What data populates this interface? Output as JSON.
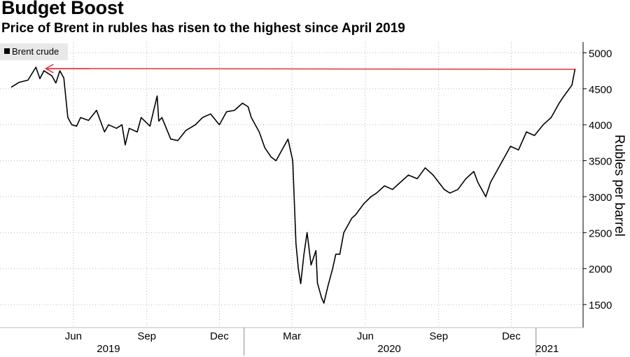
{
  "chart_data": {
    "type": "line",
    "title": "Budget Boost",
    "subtitle": "Price of Brent in rubles has risen to the highest since April 2019",
    "ylabel": "Rubles per barrel",
    "xlabel": "",
    "ylim": [
      1180,
      5150
    ],
    "y_ticks": [
      1500,
      2000,
      2500,
      3000,
      3500,
      4000,
      4500,
      5000
    ],
    "x_ticks": [
      {
        "label": "Jun",
        "date": "2019-06-01"
      },
      {
        "label": "Sep",
        "date": "2019-09-01"
      },
      {
        "label": "Dec",
        "date": "2019-12-01"
      },
      {
        "label": "Mar",
        "date": "2020-03-01"
      },
      {
        "label": "Jun",
        "date": "2020-06-01"
      },
      {
        "label": "Sep",
        "date": "2020-09-01"
      },
      {
        "label": "Dec",
        "date": "2020-12-01"
      }
    ],
    "year_labels": [
      {
        "label": "2019",
        "date": "2019-07-15"
      },
      {
        "label": "2020",
        "date": "2020-07-01"
      },
      {
        "label": "2021",
        "date": "2021-01-15"
      }
    ],
    "grid": true,
    "legend": {
      "position": "top-left",
      "label": "Brent crude"
    },
    "series": [
      {
        "name": "Brent crude",
        "color": "#000000",
        "x": [
          "2019-03-15",
          "2019-03-25",
          "2019-04-05",
          "2019-04-15",
          "2019-04-20",
          "2019-04-25",
          "2019-05-05",
          "2019-05-10",
          "2019-05-15",
          "2019-05-20",
          "2019-05-25",
          "2019-05-30",
          "2019-06-05",
          "2019-06-10",
          "2019-06-20",
          "2019-06-30",
          "2019-07-10",
          "2019-07-15",
          "2019-07-25",
          "2019-08-01",
          "2019-08-05",
          "2019-08-10",
          "2019-08-20",
          "2019-08-25",
          "2019-09-05",
          "2019-09-14",
          "2019-09-16",
          "2019-09-20",
          "2019-10-01",
          "2019-10-10",
          "2019-10-20",
          "2019-11-01",
          "2019-11-10",
          "2019-11-20",
          "2019-12-01",
          "2019-12-10",
          "2019-12-20",
          "2019-12-30",
          "2020-01-06",
          "2020-01-10",
          "2020-01-20",
          "2020-01-27",
          "2020-02-04",
          "2020-02-10",
          "2020-02-20",
          "2020-02-25",
          "2020-03-02",
          "2020-03-06",
          "2020-03-09",
          "2020-03-12",
          "2020-03-16",
          "2020-03-20",
          "2020-03-25",
          "2020-03-31",
          "2020-04-02",
          "2020-04-07",
          "2020-04-10",
          "2020-04-15",
          "2020-04-21",
          "2020-04-25",
          "2020-04-30",
          "2020-05-05",
          "2020-05-10",
          "2020-05-15",
          "2020-05-20",
          "2020-05-30",
          "2020-06-08",
          "2020-06-15",
          "2020-06-25",
          "2020-07-05",
          "2020-07-15",
          "2020-07-25",
          "2020-08-05",
          "2020-08-15",
          "2020-08-25",
          "2020-09-01",
          "2020-09-08",
          "2020-09-15",
          "2020-09-25",
          "2020-10-05",
          "2020-10-15",
          "2020-10-20",
          "2020-10-25",
          "2020-10-30",
          "2020-11-05",
          "2020-11-10",
          "2020-11-20",
          "2020-11-30",
          "2020-12-10",
          "2020-12-20",
          "2020-12-30",
          "2021-01-10",
          "2021-01-20",
          "2021-01-30",
          "2021-02-05",
          "2021-02-15",
          "2021-02-19"
        ],
        "values": [
          4520,
          4590,
          4620,
          4800,
          4640,
          4750,
          4680,
          4580,
          4750,
          4650,
          4100,
          4000,
          3980,
          4100,
          4060,
          4200,
          3900,
          4000,
          3950,
          4000,
          3720,
          3950,
          3900,
          4100,
          3980,
          4400,
          4050,
          4100,
          3800,
          3780,
          3920,
          4000,
          4100,
          4150,
          4000,
          4180,
          4200,
          4300,
          4250,
          4100,
          3900,
          3680,
          3550,
          3500,
          3700,
          3800,
          3500,
          2350,
          2000,
          1790,
          2200,
          2500,
          2050,
          2250,
          1800,
          1600,
          1520,
          1750,
          2000,
          2200,
          2200,
          2500,
          2600,
          2700,
          2750,
          2900,
          3000,
          3050,
          3150,
          3100,
          3200,
          3300,
          3250,
          3400,
          3300,
          3200,
          3100,
          3050,
          3100,
          3250,
          3350,
          3200,
          3100,
          3000,
          3200,
          3300,
          3500,
          3700,
          3650,
          3900,
          3850,
          4000,
          4100,
          4300,
          4400,
          4550,
          4780
        ]
      }
    ],
    "annotations": [
      {
        "type": "arrow",
        "color": "#e8303a",
        "from": {
          "date": "2021-02-19",
          "value": 4780
        },
        "to": {
          "date": "2019-04-15",
          "value": 4800
        }
      }
    ]
  }
}
